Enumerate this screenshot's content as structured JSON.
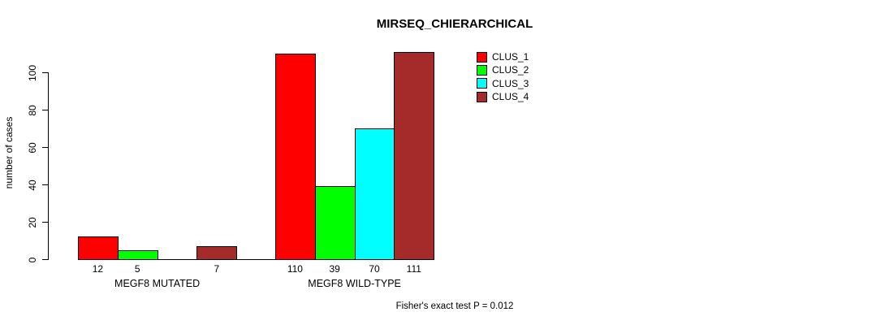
{
  "chart_data": {
    "type": "bar",
    "title": "MIRSEQ_CHIERARCHICAL",
    "ylabel": "number of cases",
    "xlabel": "",
    "ylim": [
      0,
      100
    ],
    "yticks": [
      0,
      20,
      40,
      60,
      80,
      100
    ],
    "grid": false,
    "legend_position": "top-right-inside",
    "categories": [
      "MEGF8 MUTATED",
      "MEGF8 WILD-TYPE"
    ],
    "series": [
      {
        "name": "CLUS_1",
        "color": "#FF0000",
        "values": [
          12,
          110
        ]
      },
      {
        "name": "CLUS_2",
        "color": "#00FF00",
        "values": [
          5,
          39
        ]
      },
      {
        "name": "CLUS_3",
        "color": "#00FFFF",
        "values": [
          0,
          70
        ]
      },
      {
        "name": "CLUS_4",
        "color": "#A52A2A",
        "values": [
          7,
          111
        ]
      }
    ],
    "bar_value_labels": [
      [
        "12",
        "5",
        "",
        "7"
      ],
      [
        "110",
        "39",
        "70",
        "111"
      ]
    ],
    "annotation": "Fisher's exact test P = 0.012",
    "axis_color": "#000000",
    "background_color": "#FFFFFF"
  }
}
